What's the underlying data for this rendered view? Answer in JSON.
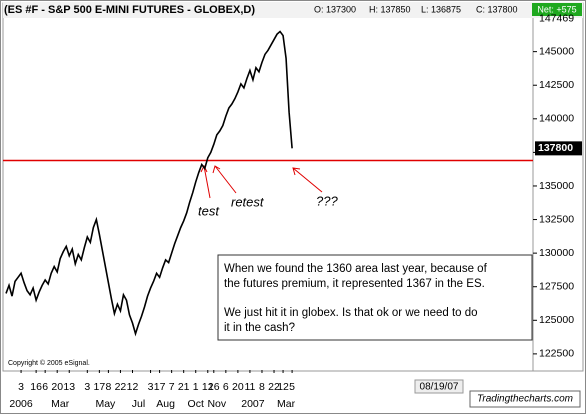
{
  "chart_data": {
    "type": "line",
    "title": "(ES #F - S&P 500 E-MINI FUTURES - GLOBEX,D)",
    "quote": [
      "O: 137300",
      "H: 137850",
      "L: 136875",
      "C: 137800"
    ],
    "net": "Net: +575",
    "values": [
      127000,
      127600,
      126800,
      127900,
      128200,
      128500,
      127800,
      127200,
      126900,
      127400,
      126500,
      127100,
      127600,
      128000,
      127700,
      128500,
      129000,
      128600,
      129600,
      130100,
      130500,
      129800,
      130300,
      129200,
      129900,
      129500,
      130400,
      131200,
      130800,
      131900,
      132500,
      131400,
      130200,
      129000,
      127800,
      126600,
      125500,
      126200,
      125700,
      126900,
      126500,
      125400,
      124800,
      124000,
      124700,
      125300,
      126000,
      126800,
      127400,
      127900,
      128500,
      128200,
      128900,
      129500,
      129300,
      130000,
      130700,
      131300,
      131900,
      132400,
      133000,
      133800,
      134500,
      135300,
      136000,
      136600,
      136300,
      137100,
      137500,
      138100,
      138800,
      139100,
      139500,
      140200,
      140800,
      141100,
      141500,
      142000,
      142600,
      142300,
      143000,
      143600,
      142900,
      143800,
      143500,
      144200,
      144800,
      145100,
      145500,
      145900,
      146300,
      146500,
      146200,
      144500,
      140500,
      137800
    ],
    "color": "#000000",
    "xlim": [
      -1,
      175
    ],
    "xticks": [
      {
        "value": 5,
        "label": "3"
      },
      {
        "value": 10,
        "label": "16"
      },
      {
        "value": 13,
        "label": "6"
      },
      {
        "value": 17,
        "label": "20"
      },
      {
        "value": 21,
        "label": "13"
      },
      {
        "value": 27,
        "label": "3"
      },
      {
        "value": 31,
        "label": "17"
      },
      {
        "value": 34,
        "label": "8"
      },
      {
        "value": 38,
        "label": "22"
      },
      {
        "value": 42,
        "label": "12"
      },
      {
        "value": 48,
        "label": "3"
      },
      {
        "value": 51,
        "label": "17"
      },
      {
        "value": 55,
        "label": "7"
      },
      {
        "value": 59,
        "label": "21"
      },
      {
        "value": 63,
        "label": "1"
      },
      {
        "value": 67,
        "label": "12"
      },
      {
        "value": 69,
        "label": "16"
      },
      {
        "value": 73,
        "label": "6"
      },
      {
        "value": 77,
        "label": "20"
      },
      {
        "value": 81,
        "label": "11"
      },
      {
        "value": 85,
        "label": "8"
      },
      {
        "value": 89,
        "label": "22"
      },
      {
        "value": 92,
        "label": "12"
      },
      {
        "value": 95,
        "label": "5"
      }
    ],
    "xticks_period": [
      {
        "value": 5,
        "label": "2006"
      },
      {
        "value": 18,
        "label": "Mar"
      },
      {
        "value": 33,
        "label": "May"
      },
      {
        "value": 44,
        "label": "Jul"
      },
      {
        "value": 53,
        "label": "Aug"
      },
      {
        "value": 63,
        "label": "Oct"
      },
      {
        "value": 70,
        "label": "Nov"
      },
      {
        "value": 82,
        "label": "2007"
      },
      {
        "value": 93,
        "label": "Mar"
      }
    ],
    "ylim": [
      121300,
      148100
    ],
    "yticks": [
      122500,
      125000,
      127500,
      130000,
      132500,
      135000,
      137500,
      140000,
      142500,
      145000
    ],
    "high_mark": 147469,
    "last_price": 137800,
    "hline": 136900,
    "hline_color": "#e00000",
    "annotations": [
      "test",
      "retest",
      "???"
    ],
    "note": [
      "When we found the 1360 area last year, because of",
      " the futures premium, it represented 1367 in the ES.",
      "We just hit it in globex. Is that ok or we need to do",
      " it in the cash?"
    ],
    "copyright": "Copyright © 2005 eSignal.",
    "date": "08/19/07",
    "watermark": "Tradingthecharts.com"
  }
}
